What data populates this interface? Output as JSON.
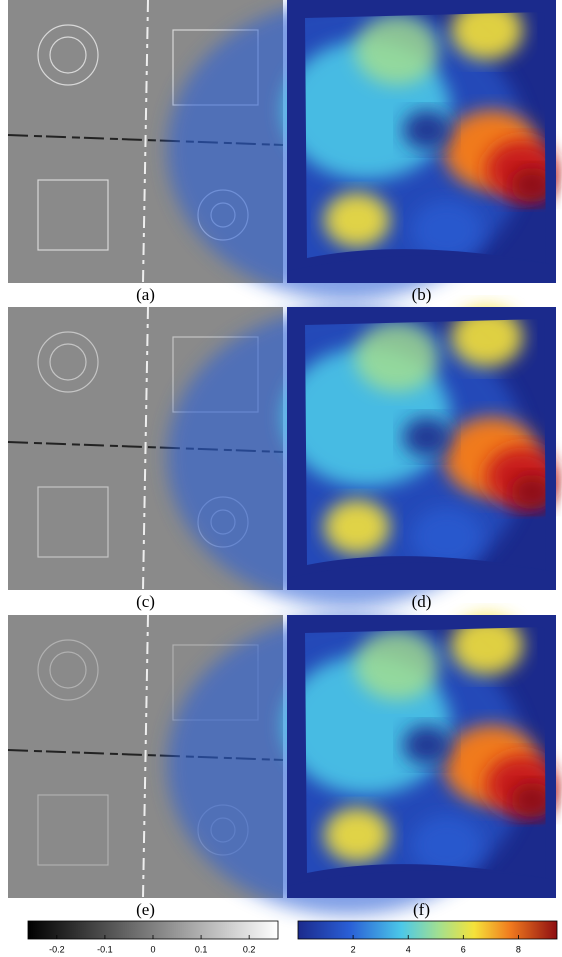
{
  "panels": [
    {
      "label": "(a)"
    },
    {
      "label": "(b)"
    },
    {
      "label": "(c)"
    },
    {
      "label": "(d)"
    },
    {
      "label": "(e)"
    },
    {
      "label": "(f)"
    }
  ],
  "colorbars": [
    {
      "lim": [
        -0.26,
        0.26
      ],
      "ticks": [
        -0.2,
        -0.1,
        0,
        0.1,
        0.2
      ]
    },
    {
      "lim": [
        0,
        9.4
      ],
      "ticks": [
        2,
        4,
        6,
        8
      ]
    }
  ]
}
